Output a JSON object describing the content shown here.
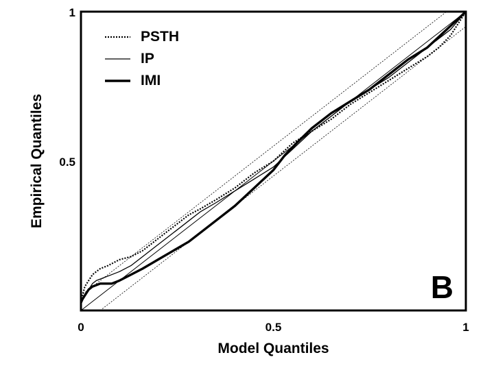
{
  "chart_data": {
    "type": "line",
    "xlabel": "Model Quantiles",
    "ylabel": "Empirical Quantiles",
    "xlim": [
      0,
      1
    ],
    "ylim": [
      0,
      1
    ],
    "xticks": [
      "0",
      "0.5",
      "1"
    ],
    "yticks": [
      "0.5",
      "1"
    ],
    "panel_label": "B",
    "legend_position": "top-left",
    "confidence_bounds_offset": 0.05,
    "series": [
      {
        "name": "PSTH",
        "style": "dotted",
        "x": [
          0,
          0.01,
          0.02,
          0.03,
          0.04,
          0.05,
          0.07,
          0.1,
          0.13,
          0.16,
          0.19,
          0.22,
          0.25,
          0.28,
          0.31,
          0.35,
          0.4,
          0.45,
          0.5,
          0.55,
          0.6,
          0.65,
          0.7,
          0.75,
          0.8,
          0.85,
          0.9,
          0.93,
          0.96,
          1.0
        ],
        "y": [
          0.03,
          0.08,
          0.1,
          0.12,
          0.13,
          0.14,
          0.15,
          0.17,
          0.18,
          0.2,
          0.23,
          0.26,
          0.29,
          0.32,
          0.34,
          0.37,
          0.41,
          0.46,
          0.5,
          0.56,
          0.6,
          0.64,
          0.69,
          0.73,
          0.77,
          0.81,
          0.85,
          0.88,
          0.92,
          1.0
        ]
      },
      {
        "name": "IP",
        "style": "thin",
        "x": [
          0,
          0.01,
          0.02,
          0.03,
          0.04,
          0.06,
          0.08,
          0.1,
          0.13,
          0.16,
          0.19,
          0.22,
          0.25,
          0.28,
          0.31,
          0.35,
          0.4,
          0.45,
          0.5,
          0.55,
          0.6,
          0.65,
          0.7,
          0.75,
          0.8,
          0.85,
          0.9,
          0.93,
          0.96,
          1.0
        ],
        "y": [
          0.02,
          0.05,
          0.07,
          0.09,
          0.1,
          0.11,
          0.12,
          0.13,
          0.15,
          0.18,
          0.21,
          0.24,
          0.27,
          0.3,
          0.33,
          0.36,
          0.4,
          0.44,
          0.48,
          0.54,
          0.6,
          0.65,
          0.7,
          0.74,
          0.78,
          0.83,
          0.88,
          0.91,
          0.94,
          1.0
        ]
      },
      {
        "name": "IMI",
        "style": "thick",
        "x": [
          0,
          0.01,
          0.02,
          0.03,
          0.05,
          0.08,
          0.1,
          0.13,
          0.16,
          0.2,
          0.24,
          0.28,
          0.32,
          0.36,
          0.4,
          0.45,
          0.5,
          0.53,
          0.56,
          0.6,
          0.65,
          0.7,
          0.75,
          0.8,
          0.85,
          0.9,
          0.95,
          1.0
        ],
        "y": [
          0.03,
          0.05,
          0.07,
          0.08,
          0.09,
          0.09,
          0.1,
          0.12,
          0.14,
          0.17,
          0.2,
          0.23,
          0.27,
          0.31,
          0.35,
          0.41,
          0.47,
          0.52,
          0.56,
          0.61,
          0.66,
          0.7,
          0.74,
          0.79,
          0.84,
          0.88,
          0.94,
          1.0
        ]
      }
    ]
  }
}
